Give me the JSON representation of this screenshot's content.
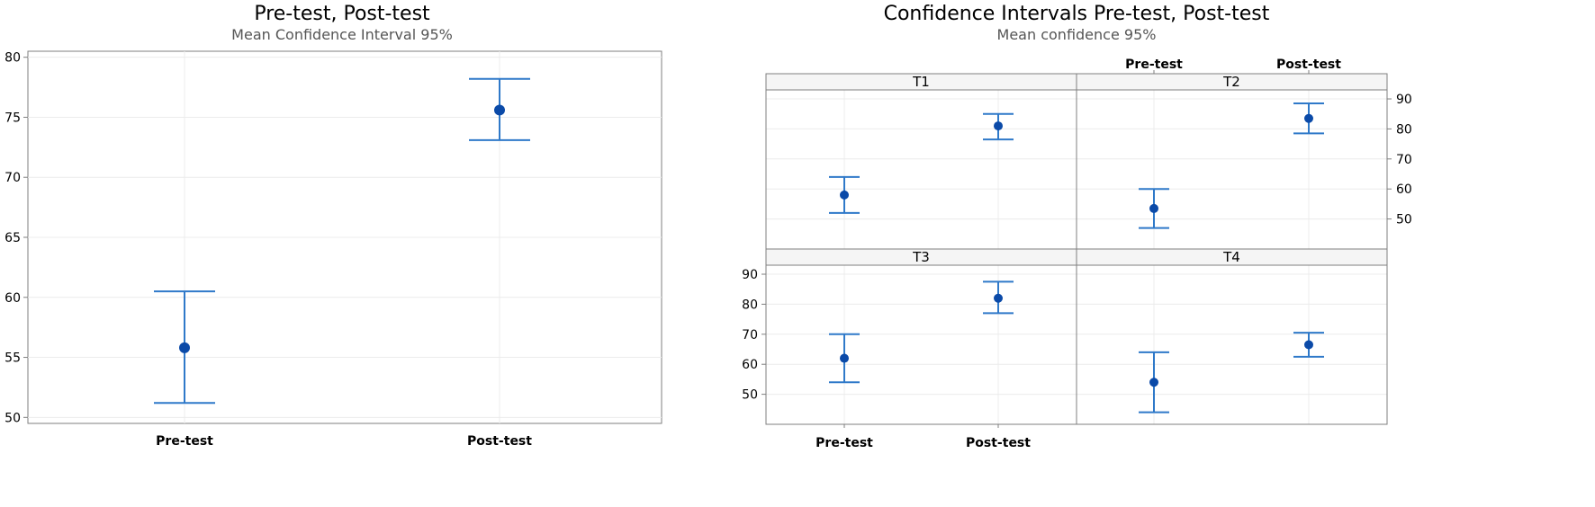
{
  "chart_data": [
    {
      "type": "interval",
      "title": "Pre-test, Post-test",
      "subtitle": "Mean Confidence Interval 95%",
      "categories": [
        "Pre-test",
        "Post-test"
      ],
      "ylim": [
        49.5,
        80.5
      ],
      "yticks": [
        50,
        55,
        60,
        65,
        70,
        75,
        80
      ],
      "grid": true,
      "points": [
        {
          "category": "Pre-test",
          "mean": 55.8,
          "lower": 51.2,
          "upper": 60.5
        },
        {
          "category": "Post-test",
          "mean": 75.6,
          "lower": 73.1,
          "upper": 78.2
        }
      ]
    },
    {
      "type": "interval",
      "title": "Confidence Intervals Pre-test, Post-test",
      "subtitle": "Mean confidence 95%",
      "categories": [
        "Pre-test",
        "Post-test"
      ],
      "yticks": [
        50,
        60,
        70,
        80,
        90
      ],
      "grid": true,
      "panels": [
        {
          "label": "T1",
          "points": [
            {
              "category": "Pre-test",
              "mean": 58.0,
              "lower": 52.0,
              "upper": 64.0
            },
            {
              "category": "Post-test",
              "mean": 81.0,
              "lower": 76.5,
              "upper": 85.0
            }
          ]
        },
        {
          "label": "T2",
          "points": [
            {
              "category": "Pre-test",
              "mean": 53.5,
              "lower": 47.0,
              "upper": 60.0
            },
            {
              "category": "Post-test",
              "mean": 83.5,
              "lower": 78.5,
              "upper": 88.5
            }
          ]
        },
        {
          "label": "T3",
          "points": [
            {
              "category": "Pre-test",
              "mean": 62.0,
              "lower": 54.0,
              "upper": 70.0
            },
            {
              "category": "Post-test",
              "mean": 82.0,
              "lower": 77.0,
              "upper": 87.5
            }
          ]
        },
        {
          "label": "T4",
          "points": [
            {
              "category": "Pre-test",
              "mean": 54.0,
              "lower": 44.0,
              "upper": 64.0
            },
            {
              "category": "Post-test",
              "mean": 66.5,
              "lower": 62.5,
              "upper": 70.5
            }
          ]
        }
      ]
    }
  ],
  "colors": {
    "interval": "#2f79c9",
    "point": "#0b4aa8",
    "grid": "#ececec",
    "frame": "#7f7f7f"
  }
}
